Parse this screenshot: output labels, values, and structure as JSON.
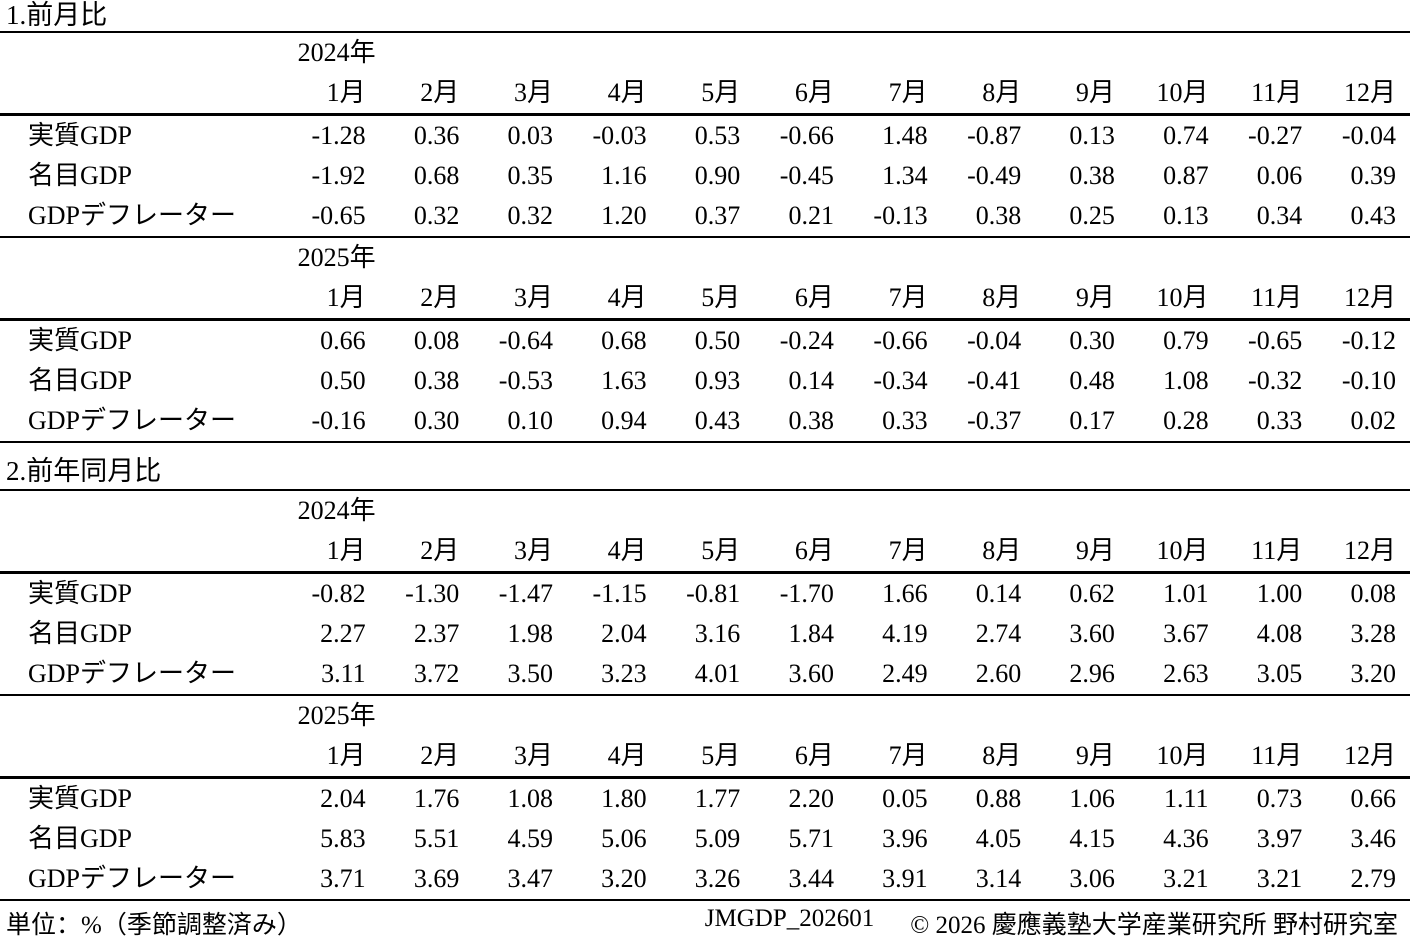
{
  "months": [
    "1月",
    "2月",
    "3月",
    "4月",
    "5月",
    "6月",
    "7月",
    "8月",
    "9月",
    "10月",
    "11月",
    "12月"
  ],
  "sections": [
    {
      "title": "1.前月比",
      "year_blocks": [
        {
          "year": "2024年",
          "rows": [
            {
              "label": "実質GDP",
              "values": [
                "-1.28",
                "0.36",
                "0.03",
                "-0.03",
                "0.53",
                "-0.66",
                "1.48",
                "-0.87",
                "0.13",
                "0.74",
                "-0.27",
                "-0.04"
              ]
            },
            {
              "label": "名目GDP",
              "values": [
                "-1.92",
                "0.68",
                "0.35",
                "1.16",
                "0.90",
                "-0.45",
                "1.34",
                "-0.49",
                "0.38",
                "0.87",
                "0.06",
                "0.39"
              ]
            },
            {
              "label": "GDPデフレーター",
              "values": [
                "-0.65",
                "0.32",
                "0.32",
                "1.20",
                "0.37",
                "0.21",
                "-0.13",
                "0.38",
                "0.25",
                "0.13",
                "0.34",
                "0.43"
              ]
            }
          ]
        },
        {
          "year": "2025年",
          "rows": [
            {
              "label": "実質GDP",
              "values": [
                "0.66",
                "0.08",
                "-0.64",
                "0.68",
                "0.50",
                "-0.24",
                "-0.66",
                "-0.04",
                "0.30",
                "0.79",
                "-0.65",
                "-0.12"
              ]
            },
            {
              "label": "名目GDP",
              "values": [
                "0.50",
                "0.38",
                "-0.53",
                "1.63",
                "0.93",
                "0.14",
                "-0.34",
                "-0.41",
                "0.48",
                "1.08",
                "-0.32",
                "-0.10"
              ]
            },
            {
              "label": "GDPデフレーター",
              "values": [
                "-0.16",
                "0.30",
                "0.10",
                "0.94",
                "0.43",
                "0.38",
                "0.33",
                "-0.37",
                "0.17",
                "0.28",
                "0.33",
                "0.02"
              ]
            }
          ]
        }
      ]
    },
    {
      "title": "2.前年同月比",
      "year_blocks": [
        {
          "year": "2024年",
          "rows": [
            {
              "label": "実質GDP",
              "values": [
                "-0.82",
                "-1.30",
                "-1.47",
                "-1.15",
                "-0.81",
                "-1.70",
                "1.66",
                "0.14",
                "0.62",
                "1.01",
                "1.00",
                "0.08"
              ]
            },
            {
              "label": "名目GDP",
              "values": [
                "2.27",
                "2.37",
                "1.98",
                "2.04",
                "3.16",
                "1.84",
                "4.19",
                "2.74",
                "3.60",
                "3.67",
                "4.08",
                "3.28"
              ]
            },
            {
              "label": "GDPデフレーター",
              "values": [
                "3.11",
                "3.72",
                "3.50",
                "3.23",
                "4.01",
                "3.60",
                "2.49",
                "2.60",
                "2.96",
                "2.63",
                "3.05",
                "3.20"
              ]
            }
          ]
        },
        {
          "year": "2025年",
          "rows": [
            {
              "label": "実質GDP",
              "values": [
                "2.04",
                "1.76",
                "1.08",
                "1.80",
                "1.77",
                "2.20",
                "0.05",
                "0.88",
                "1.06",
                "1.11",
                "0.73",
                "0.66"
              ]
            },
            {
              "label": "名目GDP",
              "values": [
                "5.83",
                "5.51",
                "4.59",
                "5.06",
                "5.09",
                "5.71",
                "3.96",
                "4.05",
                "4.15",
                "4.36",
                "3.97",
                "3.46"
              ]
            },
            {
              "label": "GDPデフレーター",
              "values": [
                "3.71",
                "3.69",
                "3.47",
                "3.20",
                "3.26",
                "3.44",
                "3.91",
                "3.14",
                "3.06",
                "3.21",
                "3.21",
                "2.79"
              ]
            }
          ]
        }
      ]
    }
  ],
  "footer": {
    "left": "単位：%（季節調整済み）",
    "right_code": "JMGDP_202601",
    "right_copyright": "© 2026 慶應義塾大学産業研究所 野村研究室"
  }
}
